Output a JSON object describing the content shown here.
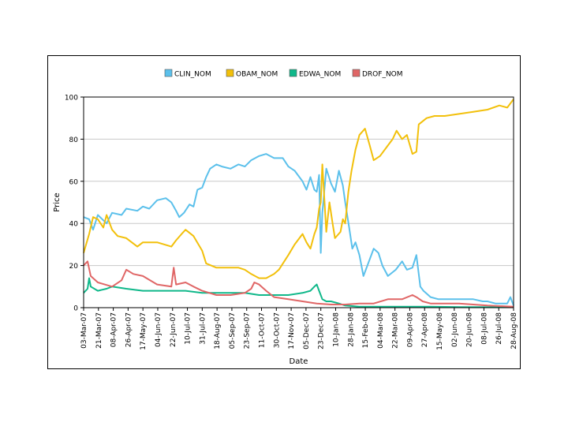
{
  "chart_data": {
    "type": "line",
    "xlabel": "Date",
    "ylabel": "Price",
    "ylim": [
      0,
      100
    ],
    "yticks": [
      0,
      20,
      40,
      60,
      80,
      100
    ],
    "grid": "horizontal",
    "legend_position": "top",
    "x_range": [
      "2007-03-03",
      "2008-08-28"
    ],
    "x_tick_labels": [
      "03-Mar-07",
      "21-Mar-07",
      "08-Apr-07",
      "26-Apr-07",
      "17-May-07",
      "04-Jun-07",
      "22-Jun-07",
      "10-Jul-07",
      "31-Jul-07",
      "18-Aug-07",
      "05-Sep-07",
      "23-Sep-07",
      "11-Oct-07",
      "30-Oct-07",
      "17-Nov-07",
      "05-Dec-07",
      "23-Dec-07",
      "10-Jan-08",
      "28-Jan-08",
      "15-Feb-08",
      "04-Mar-08",
      "22-Mar-08",
      "09-Apr-08",
      "27-Apr-08",
      "15-May-08",
      "02-Jun-08",
      "20-Jun-08",
      "08-Jul-08",
      "26-Jul-08",
      "28-Aug-08"
    ],
    "series": [
      {
        "name": "CLIN_NOM",
        "color": "#5bc0eb",
        "points": [
          [
            "2007-03-03",
            43
          ],
          [
            "2007-03-10",
            42
          ],
          [
            "2007-03-15",
            37
          ],
          [
            "2007-03-21",
            44
          ],
          [
            "2007-04-01",
            40
          ],
          [
            "2007-04-08",
            45
          ],
          [
            "2007-04-20",
            44
          ],
          [
            "2007-04-26",
            47
          ],
          [
            "2007-05-10",
            46
          ],
          [
            "2007-05-17",
            48
          ],
          [
            "2007-05-25",
            47
          ],
          [
            "2007-06-04",
            51
          ],
          [
            "2007-06-15",
            52
          ],
          [
            "2007-06-22",
            50
          ],
          [
            "2007-06-28",
            46
          ],
          [
            "2007-07-02",
            43
          ],
          [
            "2007-07-08",
            45
          ],
          [
            "2007-07-15",
            49
          ],
          [
            "2007-07-20",
            48
          ],
          [
            "2007-07-25",
            56
          ],
          [
            "2007-07-31",
            57
          ],
          [
            "2007-08-05",
            62
          ],
          [
            "2007-08-10",
            66
          ],
          [
            "2007-08-18",
            68
          ],
          [
            "2007-08-25",
            67
          ],
          [
            "2007-09-05",
            66
          ],
          [
            "2007-09-15",
            68
          ],
          [
            "2007-09-23",
            67
          ],
          [
            "2007-10-01",
            70
          ],
          [
            "2007-10-11",
            72
          ],
          [
            "2007-10-20",
            73
          ],
          [
            "2007-10-30",
            71
          ],
          [
            "2007-11-10",
            71
          ],
          [
            "2007-11-17",
            67
          ],
          [
            "2007-11-25",
            65
          ],
          [
            "2007-12-05",
            60
          ],
          [
            "2007-12-10",
            56
          ],
          [
            "2007-12-15",
            62
          ],
          [
            "2007-12-20",
            56
          ],
          [
            "2007-12-23",
            55
          ],
          [
            "2007-12-26",
            63
          ],
          [
            "2007-12-28",
            26
          ],
          [
            "2007-12-30",
            45
          ],
          [
            "2008-01-04",
            66
          ],
          [
            "2008-01-10",
            59
          ],
          [
            "2008-01-15",
            55
          ],
          [
            "2008-01-20",
            65
          ],
          [
            "2008-01-25",
            58
          ],
          [
            "2008-01-28",
            50
          ],
          [
            "2008-02-02",
            38
          ],
          [
            "2008-02-06",
            28
          ],
          [
            "2008-02-10",
            31
          ],
          [
            "2008-02-15",
            25
          ],
          [
            "2008-02-20",
            15
          ],
          [
            "2008-02-25",
            20
          ],
          [
            "2008-03-04",
            28
          ],
          [
            "2008-03-10",
            26
          ],
          [
            "2008-03-15",
            20
          ],
          [
            "2008-03-22",
            15
          ],
          [
            "2008-04-01",
            18
          ],
          [
            "2008-04-09",
            22
          ],
          [
            "2008-04-15",
            18
          ],
          [
            "2008-04-22",
            19
          ],
          [
            "2008-04-27",
            25
          ],
          [
            "2008-05-02",
            10
          ],
          [
            "2008-05-06",
            8
          ],
          [
            "2008-05-15",
            5
          ],
          [
            "2008-05-25",
            4
          ],
          [
            "2008-06-02",
            4
          ],
          [
            "2008-06-20",
            4
          ],
          [
            "2008-07-08",
            4
          ],
          [
            "2008-07-20",
            3
          ],
          [
            "2008-07-26",
            3
          ],
          [
            "2008-08-05",
            2
          ],
          [
            "2008-08-15",
            2
          ],
          [
            "2008-08-20",
            2
          ],
          [
            "2008-08-24",
            5
          ],
          [
            "2008-08-28",
            1
          ]
        ]
      },
      {
        "name": "OBAM_NOM",
        "color": "#f2c00b",
        "points": [
          [
            "2007-03-03",
            26
          ],
          [
            "2007-03-10",
            35
          ],
          [
            "2007-03-15",
            43
          ],
          [
            "2007-03-21",
            42
          ],
          [
            "2007-03-28",
            38
          ],
          [
            "2007-04-01",
            44
          ],
          [
            "2007-04-08",
            37
          ],
          [
            "2007-04-15",
            34
          ],
          [
            "2007-04-26",
            33
          ],
          [
            "2007-05-10",
            29
          ],
          [
            "2007-05-17",
            31
          ],
          [
            "2007-06-04",
            31
          ],
          [
            "2007-06-22",
            29
          ],
          [
            "2007-06-28",
            32
          ],
          [
            "2007-07-05",
            35
          ],
          [
            "2007-07-10",
            37
          ],
          [
            "2007-07-20",
            34
          ],
          [
            "2007-07-31",
            27
          ],
          [
            "2007-08-05",
            21
          ],
          [
            "2007-08-18",
            19
          ],
          [
            "2007-09-05",
            19
          ],
          [
            "2007-09-15",
            19
          ],
          [
            "2007-09-23",
            18
          ],
          [
            "2007-10-01",
            16
          ],
          [
            "2007-10-11",
            14
          ],
          [
            "2007-10-20",
            14
          ],
          [
            "2007-10-30",
            16
          ],
          [
            "2007-11-05",
            18
          ],
          [
            "2007-11-17",
            25
          ],
          [
            "2007-11-25",
            30
          ],
          [
            "2007-12-05",
            35
          ],
          [
            "2007-12-10",
            31
          ],
          [
            "2007-12-15",
            28
          ],
          [
            "2007-12-20",
            35
          ],
          [
            "2007-12-23",
            38
          ],
          [
            "2007-12-26",
            47
          ],
          [
            "2007-12-28",
            50
          ],
          [
            "2007-12-30",
            68
          ],
          [
            "2008-01-04",
            36
          ],
          [
            "2008-01-08",
            50
          ],
          [
            "2008-01-12",
            40
          ],
          [
            "2008-01-15",
            33
          ],
          [
            "2008-01-22",
            36
          ],
          [
            "2008-01-25",
            42
          ],
          [
            "2008-01-28",
            40
          ],
          [
            "2008-02-01",
            55
          ],
          [
            "2008-02-05",
            65
          ],
          [
            "2008-02-10",
            75
          ],
          [
            "2008-02-15",
            82
          ],
          [
            "2008-02-22",
            85
          ],
          [
            "2008-02-28",
            77
          ],
          [
            "2008-03-04",
            70
          ],
          [
            "2008-03-12",
            72
          ],
          [
            "2008-03-22",
            77
          ],
          [
            "2008-03-28",
            80
          ],
          [
            "2008-04-02",
            84
          ],
          [
            "2008-04-09",
            80
          ],
          [
            "2008-04-15",
            82
          ],
          [
            "2008-04-22",
            73
          ],
          [
            "2008-04-27",
            74
          ],
          [
            "2008-04-30",
            87
          ],
          [
            "2008-05-10",
            90
          ],
          [
            "2008-05-20",
            91
          ],
          [
            "2008-06-02",
            91
          ],
          [
            "2008-06-20",
            92
          ],
          [
            "2008-07-08",
            93
          ],
          [
            "2008-07-26",
            94
          ],
          [
            "2008-08-10",
            96
          ],
          [
            "2008-08-20",
            95
          ],
          [
            "2008-08-28",
            99
          ]
        ]
      },
      {
        "name": "EDWA_NOM",
        "color": "#10b88a",
        "points": [
          [
            "2007-03-03",
            7
          ],
          [
            "2007-03-08",
            9
          ],
          [
            "2007-03-10",
            14
          ],
          [
            "2007-03-12",
            10
          ],
          [
            "2007-03-21",
            8
          ],
          [
            "2007-04-01",
            9
          ],
          [
            "2007-04-08",
            10
          ],
          [
            "2007-04-26",
            9
          ],
          [
            "2007-05-17",
            8
          ],
          [
            "2007-06-04",
            8
          ],
          [
            "2007-06-22",
            8
          ],
          [
            "2007-07-10",
            8
          ],
          [
            "2007-07-31",
            7
          ],
          [
            "2007-08-18",
            7
          ],
          [
            "2007-09-05",
            7
          ],
          [
            "2007-09-23",
            7
          ],
          [
            "2007-10-11",
            6
          ],
          [
            "2007-10-30",
            6
          ],
          [
            "2007-11-17",
            6
          ],
          [
            "2007-12-05",
            7
          ],
          [
            "2007-12-15",
            8
          ],
          [
            "2007-12-20",
            10
          ],
          [
            "2007-12-23",
            11
          ],
          [
            "2007-12-26",
            8
          ],
          [
            "2007-12-30",
            4
          ],
          [
            "2008-01-04",
            3
          ],
          [
            "2008-01-10",
            3
          ],
          [
            "2008-01-20",
            2
          ],
          [
            "2008-01-28",
            1
          ],
          [
            "2008-02-15",
            0.5
          ],
          [
            "2008-03-04",
            0.5
          ],
          [
            "2008-04-09",
            0.5
          ],
          [
            "2008-05-15",
            0.5
          ],
          [
            "2008-06-20",
            0.3
          ],
          [
            "2008-08-28",
            0.2
          ]
        ]
      },
      {
        "name": "DROF_NOM",
        "color": "#e06666",
        "points": [
          [
            "2007-03-03",
            20
          ],
          [
            "2007-03-08",
            22
          ],
          [
            "2007-03-12",
            15
          ],
          [
            "2007-03-21",
            12
          ],
          [
            "2007-04-08",
            10
          ],
          [
            "2007-04-20",
            13
          ],
          [
            "2007-04-26",
            18
          ],
          [
            "2007-05-05",
            16
          ],
          [
            "2007-05-17",
            15
          ],
          [
            "2007-06-04",
            11
          ],
          [
            "2007-06-22",
            10
          ],
          [
            "2007-06-25",
            19
          ],
          [
            "2007-06-28",
            11
          ],
          [
            "2007-07-10",
            12
          ],
          [
            "2007-07-20",
            10
          ],
          [
            "2007-07-31",
            8
          ],
          [
            "2007-08-18",
            6
          ],
          [
            "2007-09-05",
            6
          ],
          [
            "2007-09-23",
            7
          ],
          [
            "2007-10-01",
            9
          ],
          [
            "2007-10-05",
            12
          ],
          [
            "2007-10-11",
            11
          ],
          [
            "2007-10-20",
            8
          ],
          [
            "2007-10-30",
            5
          ],
          [
            "2007-11-17",
            4
          ],
          [
            "2007-12-05",
            3
          ],
          [
            "2007-12-23",
            2
          ],
          [
            "2008-01-10",
            1.5
          ],
          [
            "2008-01-28",
            1.5
          ],
          [
            "2008-02-15",
            2
          ],
          [
            "2008-03-04",
            2
          ],
          [
            "2008-03-22",
            4
          ],
          [
            "2008-04-09",
            4
          ],
          [
            "2008-04-22",
            6
          ],
          [
            "2008-04-27",
            5
          ],
          [
            "2008-05-05",
            3
          ],
          [
            "2008-05-15",
            2
          ],
          [
            "2008-06-02",
            2
          ],
          [
            "2008-06-20",
            2
          ],
          [
            "2008-07-08",
            1.5
          ],
          [
            "2008-07-26",
            1
          ],
          [
            "2008-08-28",
            0.5
          ]
        ]
      }
    ]
  }
}
